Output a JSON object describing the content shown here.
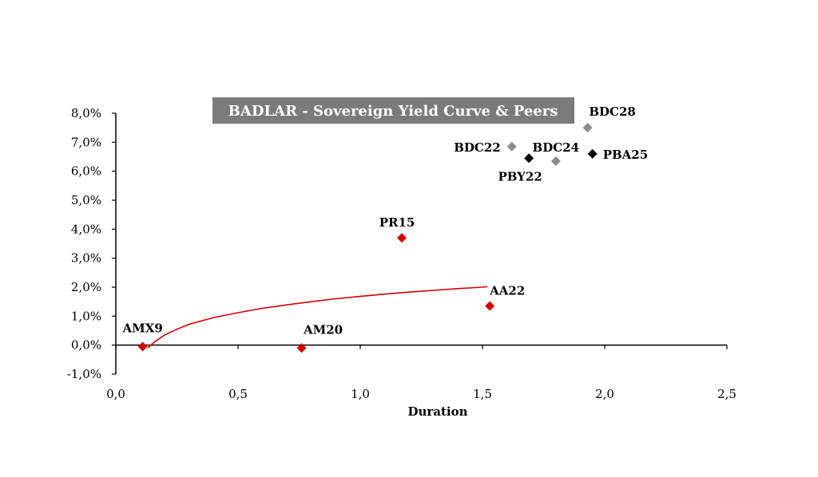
{
  "chart_data": {
    "type": "scatter",
    "title": "BADLAR - Sovereign Yield Curve & Peers",
    "xlabel": "Duration",
    "ylabel": "",
    "xlim": [
      0,
      2.5
    ],
    "ylim": [
      -1,
      8
    ],
    "x_ticks": [
      "0,0",
      "0,5",
      "1,0",
      "1,5",
      "2,0",
      "2,5"
    ],
    "y_ticks": [
      "-1,0%",
      "0,0%",
      "1,0%",
      "2,0%",
      "3,0%",
      "4,0%",
      "5,0%",
      "6,0%",
      "7,0%",
      "8,0%"
    ],
    "grid": false,
    "points": [
      {
        "label": "AMX9",
        "x": 0.11,
        "y": -0.05,
        "color": "#d40000"
      },
      {
        "label": "AM20",
        "x": 0.76,
        "y": -0.1,
        "color": "#d40000"
      },
      {
        "label": "PR15",
        "x": 1.17,
        "y": 3.7,
        "color": "#d40000"
      },
      {
        "label": "AA22",
        "x": 1.53,
        "y": 1.35,
        "color": "#d40000"
      },
      {
        "label": "BDC22",
        "x": 1.62,
        "y": 6.85,
        "color": "#8c8c8c"
      },
      {
        "label": "PBY22",
        "x": 1.69,
        "y": 6.45,
        "color": "#000000"
      },
      {
        "label": "BDC24",
        "x": 1.8,
        "y": 6.35,
        "color": "#8c8c8c"
      },
      {
        "label": "BDC28",
        "x": 1.93,
        "y": 7.5,
        "color": "#8c8c8c"
      },
      {
        "label": "PBA25",
        "x": 1.95,
        "y": 6.6,
        "color": "#000000"
      }
    ],
    "fit_curve": {
      "color": "#d40000",
      "x": [
        0.13,
        0.16,
        0.2,
        0.25,
        0.3,
        0.4,
        0.5,
        0.6,
        0.7,
        0.8,
        0.9,
        1.0,
        1.1,
        1.2,
        1.3,
        1.4,
        1.5,
        1.52
      ],
      "y": [
        -0.1,
        0.12,
        0.35,
        0.55,
        0.72,
        0.95,
        1.12,
        1.27,
        1.39,
        1.5,
        1.6,
        1.68,
        1.76,
        1.83,
        1.89,
        1.95,
        2.0,
        2.02
      ]
    }
  }
}
